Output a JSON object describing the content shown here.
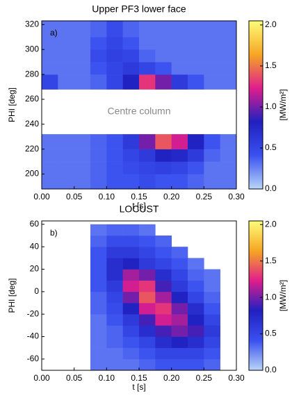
{
  "chart_data": [
    {
      "type": "heatmap",
      "title": "Upper PF3 lower face",
      "x_label": "t [s]",
      "y_label": "PHI [deg]",
      "colorbar_label": "[MW/m²]",
      "annotations": [
        "a)",
        "Centre column"
      ],
      "x_edges": [
        0,
        0.025,
        0.05,
        0.075,
        0.1,
        0.125,
        0.15,
        0.175,
        0.2,
        0.225,
        0.25,
        0.275,
        0.3
      ],
      "y_edges": [
        188,
        200,
        210,
        220,
        232,
        268,
        280,
        290,
        300,
        310,
        323
      ],
      "values": [
        [
          0.3,
          0.3,
          0.3,
          0.35,
          0.4,
          0.4,
          0.45,
          0.4,
          0.4,
          0.35,
          0.3,
          0.3
        ],
        [
          0.3,
          0.3,
          0.3,
          0.35,
          0.4,
          0.45,
          0.5,
          0.55,
          0.5,
          0.4,
          0.3,
          0.3
        ],
        [
          0.3,
          0.3,
          0.3,
          0.35,
          0.4,
          0.5,
          0.6,
          0.8,
          0.75,
          0.6,
          0.35,
          0.3
        ],
        [
          0.3,
          0.3,
          0.3,
          0.35,
          0.4,
          0.6,
          1.0,
          1.4,
          1.2,
          0.8,
          0.4,
          0.3
        ],
        [
          null,
          null,
          null,
          null,
          null,
          null,
          null,
          null,
          null,
          null,
          null,
          null
        ],
        [
          0.5,
          0.3,
          0.3,
          0.35,
          0.5,
          0.8,
          1.3,
          1.0,
          0.6,
          0.4,
          0.3,
          0.3
        ],
        [
          0.3,
          0.3,
          0.3,
          0.4,
          0.5,
          0.6,
          0.5,
          0.4,
          0.3,
          0.3,
          0.3,
          0.3
        ],
        [
          0.3,
          0.3,
          0.3,
          0.45,
          0.55,
          0.5,
          0.35,
          0.3,
          0.3,
          0.3,
          0.3,
          0.3
        ],
        [
          0.3,
          0.3,
          0.3,
          0.4,
          0.5,
          0.4,
          0.3,
          0.3,
          0.3,
          0.3,
          0.3,
          0.3
        ],
        [
          0.3,
          0.3,
          0.3,
          0.35,
          0.45,
          0.35,
          0.3,
          0.3,
          0.3,
          0.3,
          0.3,
          0.3
        ]
      ],
      "xlim": [
        0,
        0.3
      ],
      "ylim": [
        188,
        323
      ],
      "xticks": [
        {
          "value": 0,
          "label": "0.00"
        },
        0.05,
        {
          "value": 0.1,
          "label": "0.10"
        },
        0.15,
        {
          "value": 0.2,
          "label": "0.20"
        },
        0.25,
        {
          "value": 0.3,
          "label": "0.30"
        }
      ],
      "yticks": [
        200,
        220,
        240,
        260,
        280,
        300,
        320
      ],
      "clim": [
        0,
        2.05
      ],
      "cticks": [
        {
          "value": 0,
          "label": "0.0"
        },
        0.5,
        {
          "value": 1,
          "label": "1.0"
        },
        1.5,
        {
          "value": 2,
          "label": "2.0"
        }
      ],
      "colormap": [
        "#b9d6f7",
        "#3a50f0",
        "#2020c0",
        "#e01e8c",
        "#f6a623",
        "#fdfd7a"
      ]
    },
    {
      "type": "heatmap",
      "title": "LOCUST",
      "x_label": "t [s]",
      "y_label": "PHI [deg]",
      "colorbar_label": "[MW/m²]",
      "annotations": [
        "b)"
      ],
      "x_edges": [
        0,
        0.025,
        0.05,
        0.075,
        0.1,
        0.125,
        0.15,
        0.175,
        0.2,
        0.225,
        0.25,
        0.275,
        0.3
      ],
      "y_edges": [
        -70,
        -60,
        -50,
        -40,
        -30,
        -20,
        -10,
        0,
        10,
        20,
        30,
        40,
        50,
        60
      ],
      "values": [
        [
          null,
          null,
          null,
          0.3,
          0.3,
          0.3,
          0.35,
          0.4,
          0.4,
          0.4,
          0.35,
          null
        ],
        [
          null,
          null,
          null,
          0.3,
          0.3,
          0.35,
          0.4,
          0.5,
          0.5,
          0.5,
          0.4,
          null
        ],
        [
          null,
          null,
          null,
          0.3,
          0.35,
          0.4,
          0.5,
          0.7,
          0.8,
          0.7,
          0.5,
          null
        ],
        [
          null,
          null,
          null,
          0.3,
          0.35,
          0.5,
          0.7,
          0.9,
          1.0,
          0.9,
          0.6,
          null
        ],
        [
          null,
          null,
          null,
          0.3,
          0.4,
          0.6,
          0.9,
          1.2,
          1.1,
          0.8,
          0.5,
          null
        ],
        [
          null,
          null,
          null,
          0.35,
          0.45,
          0.8,
          1.2,
          1.3,
          1.0,
          0.7,
          0.4,
          null
        ],
        [
          null,
          null,
          null,
          0.35,
          0.5,
          1.0,
          1.4,
          1.1,
          0.8,
          0.5,
          0.35,
          null
        ],
        [
          null,
          null,
          null,
          0.4,
          0.6,
          1.2,
          1.3,
          0.9,
          0.6,
          0.4,
          0.3,
          null
        ],
        [
          null,
          null,
          null,
          0.4,
          0.7,
          1.1,
          1.0,
          0.7,
          0.5,
          0.35,
          0.3,
          null
        ],
        [
          null,
          null,
          null,
          0.4,
          0.7,
          0.8,
          0.6,
          0.5,
          0.4,
          0.3,
          null,
          null
        ],
        [
          null,
          null,
          null,
          0.4,
          0.6,
          0.6,
          0.5,
          0.4,
          0.35,
          null,
          null,
          null
        ],
        [
          null,
          null,
          null,
          0.35,
          0.45,
          0.45,
          0.4,
          0.35,
          null,
          null,
          null,
          null
        ],
        [
          null,
          null,
          null,
          0.3,
          0.35,
          0.35,
          0.3,
          null,
          null,
          null,
          null,
          null
        ]
      ],
      "xlim": [
        0,
        0.3
      ],
      "ylim": [
        -70,
        63
      ],
      "xticks": [
        {
          "value": 0,
          "label": "0.00"
        },
        0.05,
        {
          "value": 0.1,
          "label": "0.10"
        },
        0.15,
        {
          "value": 0.2,
          "label": "0.20"
        },
        0.25,
        {
          "value": 0.3,
          "label": "0.30"
        }
      ],
      "yticks": [
        -60,
        -40,
        -20,
        0,
        20,
        40,
        60
      ],
      "clim": [
        0,
        2.05
      ],
      "cticks": [
        {
          "value": 0,
          "label": "0.0"
        },
        0.5,
        {
          "value": 1,
          "label": "1.0"
        },
        1.5,
        {
          "value": 2,
          "label": "2.0"
        }
      ],
      "colormap": [
        "#b9d6f7",
        "#3a50f0",
        "#2020c0",
        "#e01e8c",
        "#f6a623",
        "#fdfd7a"
      ]
    }
  ]
}
